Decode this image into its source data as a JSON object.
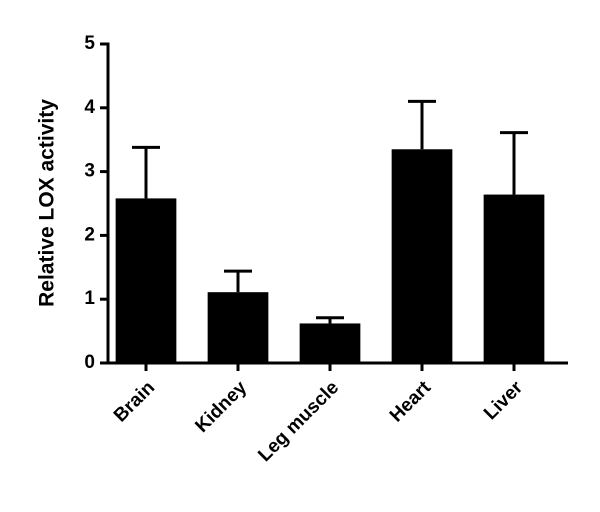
{
  "chart_data": {
    "type": "bar",
    "y_label": "Relative LOX activity",
    "categories": [
      "Brain",
      "Kidney",
      "Leg muscle",
      "Heart",
      "Liver"
    ],
    "values": [
      2.58,
      1.11,
      0.62,
      3.35,
      2.64
    ],
    "errors": [
      0.8,
      0.33,
      0.09,
      0.75,
      0.97
    ],
    "color": "#000000",
    "ylim": [
      0,
      5
    ],
    "yticks": [
      0,
      1,
      2,
      3,
      4,
      5
    ]
  }
}
